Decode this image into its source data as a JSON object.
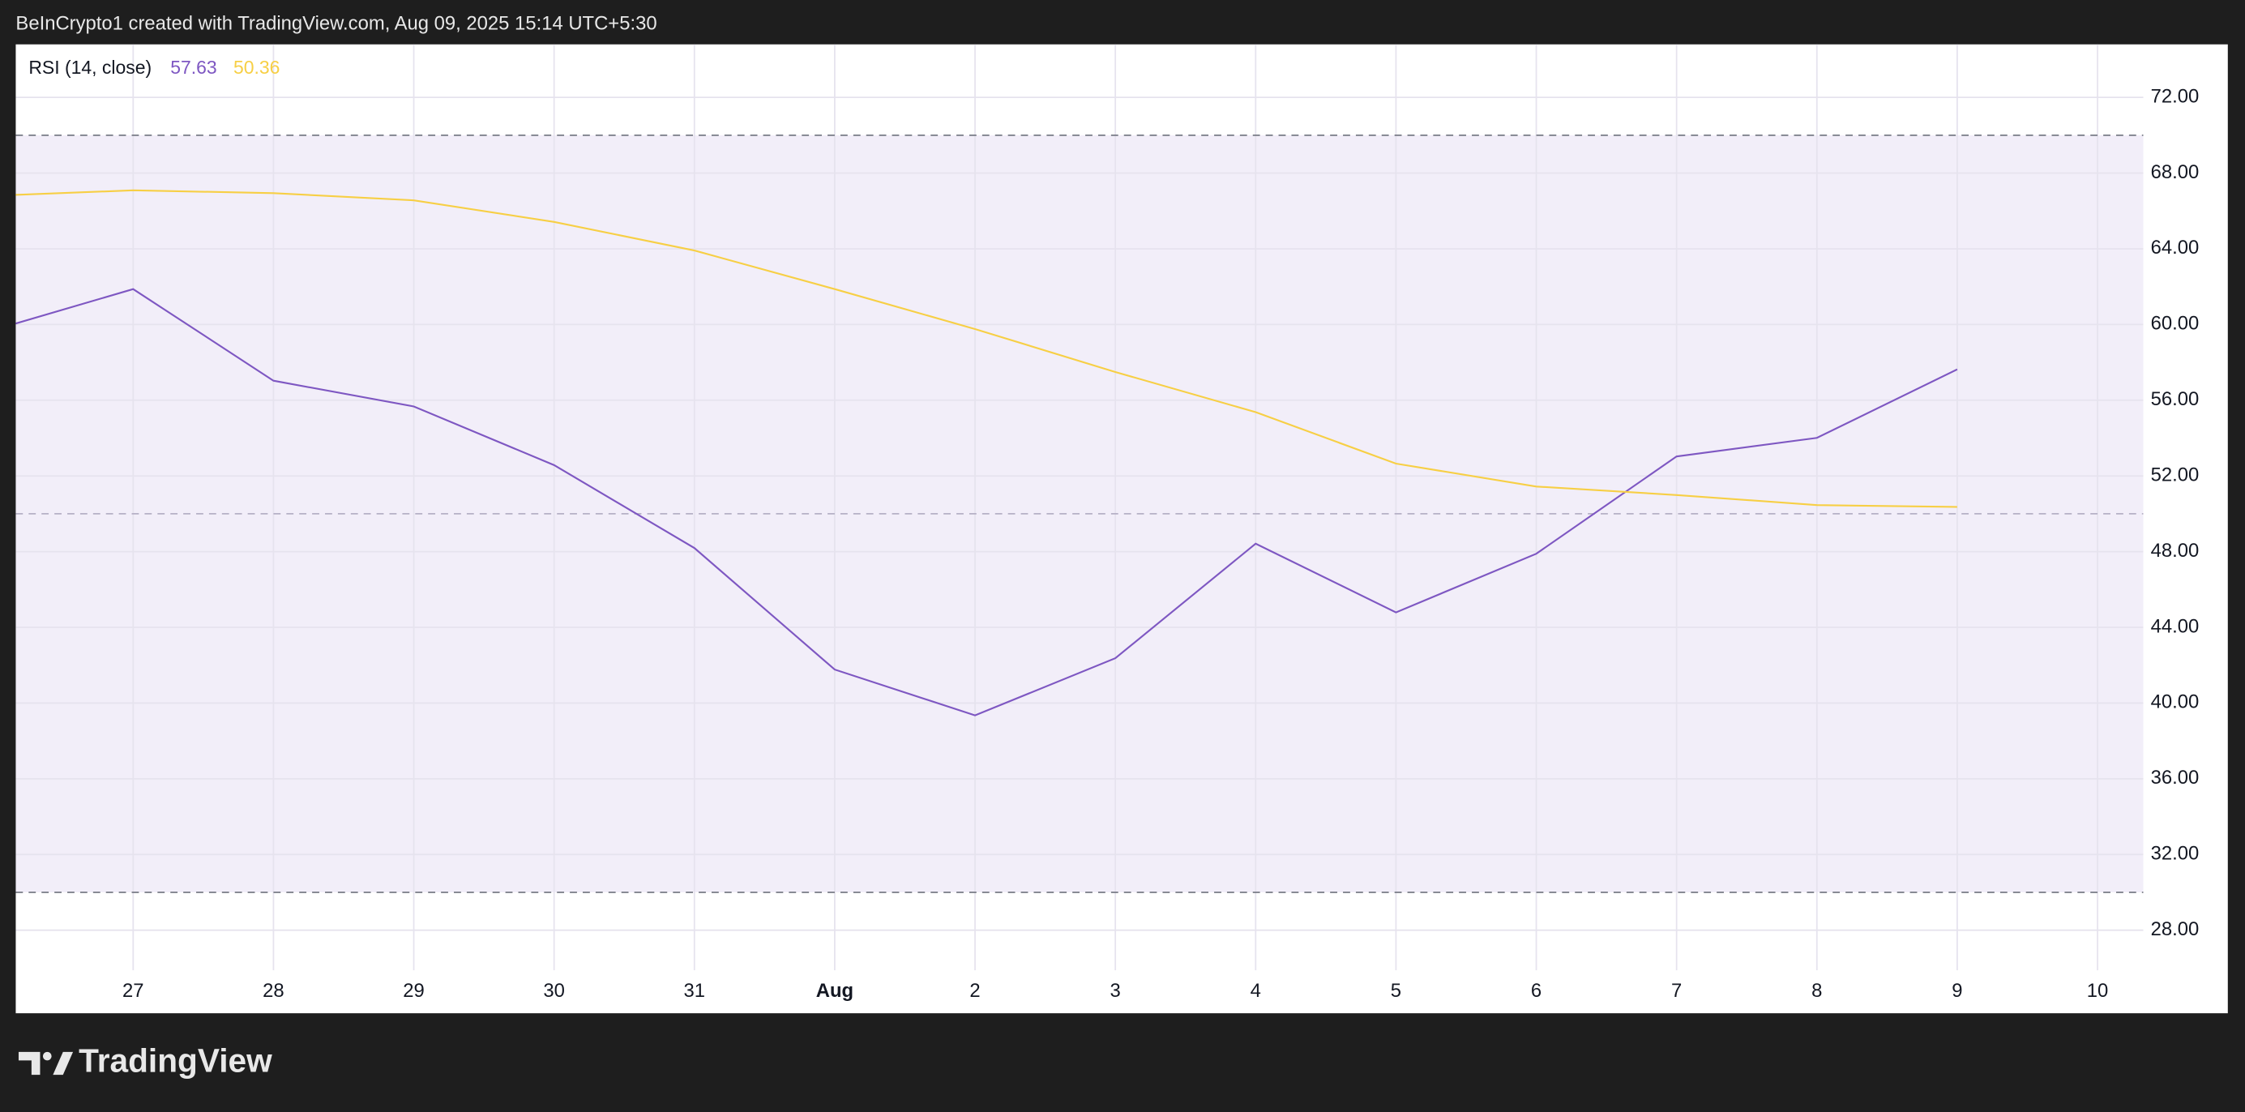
{
  "header": "BeInCrypto1 created with TradingView.com, Aug 09, 2025 15:14 UTC+5:30",
  "footer": "TradingView",
  "chart_data": {
    "type": "line",
    "indicator": "RSI (14, close)",
    "categories": [
      null,
      "27",
      "28",
      "29",
      "30",
      "31",
      "Aug",
      "2",
      "3",
      "4",
      "5",
      "6",
      "7",
      "8",
      "9",
      "10"
    ],
    "series": [
      {
        "color": "#7e57c2",
        "last_label": "57.63",
        "values": [
          59.7,
          61.87,
          57.03,
          55.67,
          52.57,
          48.19,
          41.77,
          39.35,
          42.37,
          48.42,
          44.79,
          47.89,
          53.03,
          54.01,
          57.63,
          null
        ]
      },
      {
        "color": "#f7cf45",
        "last_label": "50.36",
        "values": [
          66.8,
          67.09,
          66.94,
          66.56,
          65.42,
          63.91,
          61.87,
          59.76,
          57.49,
          55.37,
          52.65,
          51.44,
          50.99,
          50.46,
          50.36,
          null
        ]
      }
    ],
    "levels": [
      70,
      50,
      30
    ],
    "band_color": "#7e57c2",
    "ylim": [
      25.88,
      74.8
    ],
    "yticks": [
      {
        "value": 28,
        "label": "28.00"
      },
      {
        "value": 32,
        "label": "32.00"
      },
      {
        "value": 36,
        "label": "36.00"
      },
      {
        "value": 40,
        "label": "40.00"
      },
      {
        "value": 44,
        "label": "44.00"
      },
      {
        "value": 48,
        "label": "48.00"
      },
      {
        "value": 52,
        "label": "52.00"
      },
      {
        "value": 56,
        "label": "56.00"
      },
      {
        "value": 60,
        "label": "60.00"
      },
      {
        "value": 64,
        "label": "64.00"
      },
      {
        "value": 68,
        "label": "68.00"
      },
      {
        "value": 72,
        "label": "72.00"
      }
    ],
    "grid": true
  }
}
